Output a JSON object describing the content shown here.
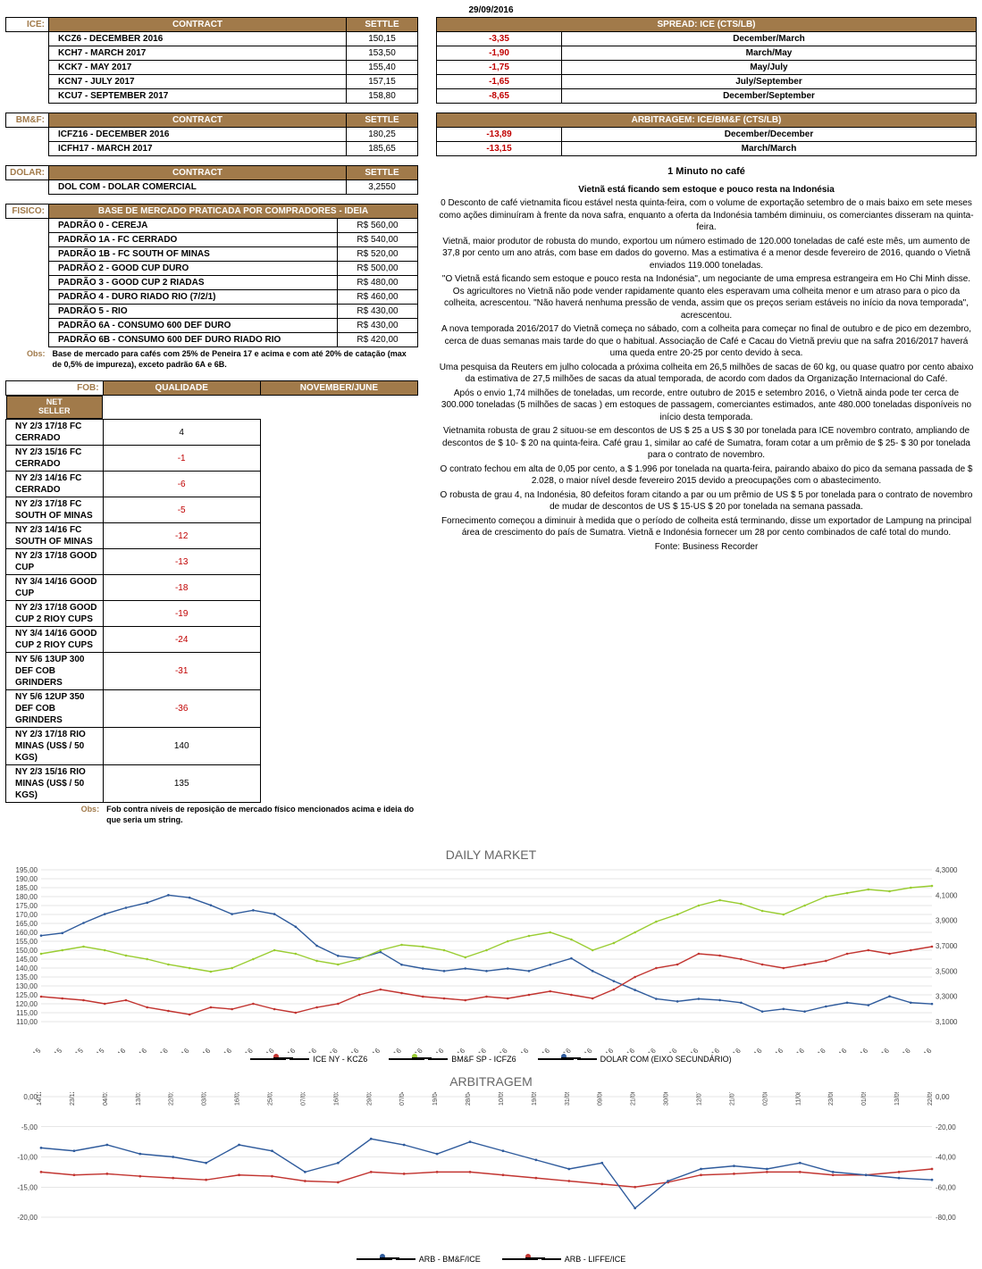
{
  "date": "29/09/2016",
  "ice": {
    "label": "ICE:",
    "col_contract": "CONTRACT",
    "col_settle": "SETTLE",
    "rows": [
      {
        "name": "KCZ6 - DECEMBER 2016",
        "settle": "150,15"
      },
      {
        "name": "KCH7 - MARCH 2017",
        "settle": "153,50"
      },
      {
        "name": "KCK7 - MAY 2017",
        "settle": "155,40"
      },
      {
        "name": "KCN7 - JULY 2017",
        "settle": "157,15"
      },
      {
        "name": "KCU7 - SEPTEMBER 2017",
        "settle": "158,80"
      }
    ]
  },
  "bmf": {
    "label": "BM&F:",
    "col_contract": "CONTRACT",
    "col_settle": "SETTLE",
    "rows": [
      {
        "name": "ICFZ16 - DECEMBER 2016",
        "settle": "180,25"
      },
      {
        "name": "ICFH17 - MARCH 2017",
        "settle": "185,65"
      }
    ]
  },
  "dolar": {
    "label": "DOLAR:",
    "col_contract": "CONTRACT",
    "col_settle": "SETTLE",
    "rows": [
      {
        "name": "DOL COM - DOLAR COMERCIAL",
        "settle": "3,2550"
      }
    ]
  },
  "fisico": {
    "label": "FISICO:",
    "header": "BASE DE MERCADO PRATICADA POR COMPRADORES - IDEIA",
    "rows": [
      {
        "name": "PADRÃO 0 - CEREJA",
        "val": "R$ 560,00"
      },
      {
        "name": "PADRÃO 1A - FC CERRADO",
        "val": "R$ 540,00"
      },
      {
        "name": "PADRÃO 1B - FC SOUTH OF MINAS",
        "val": "R$ 520,00"
      },
      {
        "name": "PADRÃO 2 - GOOD CUP DURO",
        "val": "R$ 500,00"
      },
      {
        "name": "PADRÃO 3 - GOOD CUP 2 RIADAS",
        "val": "R$ 480,00"
      },
      {
        "name": "PADRÃO 4 - DURO RIADO RIO (7/2/1)",
        "val": "R$ 460,00"
      },
      {
        "name": "PADRÃO 5 - RIO",
        "val": "R$ 430,00"
      },
      {
        "name": "PADRÃO 6A - CONSUMO 600 DEF DURO",
        "val": "R$ 430,00"
      },
      {
        "name": "PADRÃO 6B - CONSUMO 600 DEF DURO RIADO RIO",
        "val": "R$ 420,00"
      }
    ],
    "obs_label": "Obs:",
    "obs": "Base de mercado para cafés com 25% de Peneira 17 e acima e com até 20% de catação (max de 0,5% de impureza), exceto padrão 6A e 6B."
  },
  "fob": {
    "label": "FOB:",
    "stub1": "NET",
    "stub2": "SELLER",
    "col_q": "QUALIDADE",
    "col_v": "NOVEMBER/JUNE",
    "rows": [
      {
        "name": "NY 2/3 17/18 FC CERRADO",
        "val": "4",
        "neg": false
      },
      {
        "name": "NY 2/3 15/16 FC CERRADO",
        "val": "-1",
        "neg": true
      },
      {
        "name": "NY 2/3 14/16 FC CERRADO",
        "val": "-6",
        "neg": true
      },
      {
        "name": "NY 2/3 17/18 FC SOUTH OF MINAS",
        "val": "-5",
        "neg": true
      },
      {
        "name": "NY 2/3 14/16 FC SOUTH OF MINAS",
        "val": "-12",
        "neg": true
      },
      {
        "name": "NY 2/3 17/18 GOOD CUP",
        "val": "-13",
        "neg": true
      },
      {
        "name": "NY 3/4 14/16 GOOD CUP",
        "val": "-18",
        "neg": true
      },
      {
        "name": "NY 2/3 17/18 GOOD CUP 2 RIOY CUPS",
        "val": "-19",
        "neg": true
      },
      {
        "name": "NY 3/4 14/16 GOOD CUP 2 RIOY CUPS",
        "val": "-24",
        "neg": true
      },
      {
        "name": "NY 5/6 13UP 300 DEF COB GRINDERS",
        "val": "-31",
        "neg": true
      },
      {
        "name": "NY 5/6 12UP 350 DEF COB GRINDERS",
        "val": "-36",
        "neg": true
      },
      {
        "name": "NY 2/3 17/18 RIO MINAS (US$ / 50 KGS)",
        "val": "140",
        "neg": false
      },
      {
        "name": "NY 2/3 15/16 RIO MINAS (US$ / 50 KGS)",
        "val": "135",
        "neg": false
      }
    ],
    "obs_label": "Obs:",
    "obs": "Fob contra níveis de reposição de mercado físico mencionados acima e ideia do que seria um string."
  },
  "spread": {
    "header": "SPREAD: ICE (CTS/LB)",
    "rows": [
      {
        "val": "-3,35",
        "label": "December/March"
      },
      {
        "val": "-1,90",
        "label": "March/May"
      },
      {
        "val": "-1,75",
        "label": "May/July"
      },
      {
        "val": "-1,65",
        "label": "July/September"
      },
      {
        "val": "-8,65",
        "label": "December/September"
      }
    ]
  },
  "arb": {
    "header": "ARBITRAGEM: ICE/BM&F (CTS/LB)",
    "rows": [
      {
        "val": "-13,89",
        "label": "December/December"
      },
      {
        "val": "-13,15",
        "label": "March/March"
      }
    ]
  },
  "article": {
    "title": "1 Minuto no café",
    "subtitle": "Vietnã está ficando sem estoque e pouco resta na Indonésia",
    "p1": "0 Desconto de café vietnamita ficou estável nesta quinta-feira, com o volume de exportação setembro de o mais baixo em sete meses como ações diminuíram à frente da nova safra, enquanto a oferta da Indonésia também diminuiu, os comerciantes disseram na quinta-feira.",
    "p2": "Vietnã, maior produtor de robusta do mundo, exportou um número estimado de 120.000 toneladas de café este mês, um aumento de 37,8 por cento um ano atrás, com base em dados do governo. Mas a estimativa é a menor desde fevereiro de 2016, quando o Vietnã enviados 119.000 toneladas.",
    "p3": "\"O Vietnã está ficando sem estoque e pouco resta na Indonésia\", um negociante de uma empresa estrangeira em Ho Chi Minh disse. Os agricultores no Vietnã não pode vender rapidamente quanto eles esperavam uma colheita menor e um atraso para o pico da colheita, acrescentou. \"Não haverá nenhuma pressão de venda, assim que os preços seriam estáveis no início da nova temporada\", acrescentou.",
    "p4": "A nova temporada 2016/2017 do Vietnã começa no sábado, com a colheita para começar no final de outubro e de pico em dezembro, cerca de duas semanas mais tarde do que o habitual. Associação de Café e Cacau do Vietnã previu que na safra 2016/2017 haverá uma queda entre 20-25 por cento devido à seca.",
    "p5": "Uma pesquisa da Reuters em julho colocada a próxima colheita em 26,5 milhões de sacas de 60 kg, ou quase quatro por cento abaixo da estimativa de 27,5 milhões de sacas da atual temporada, de acordo com dados da Organização Internacional do Café.",
    "p6": "Após o envio 1,74 milhões de toneladas, um recorde, entre outubro de 2015 e setembro 2016, o Vietnã ainda pode ter cerca de 300.000 toneladas (5 milhões de sacas ) em estoques de passagem, comerciantes estimados, ante 480.000 toneladas disponíveis no início desta temporada.",
    "p7": "Vietnamita robusta de grau 2 situou-se em descontos de US $ 25 a US $ 30 por tonelada para ICE novembro contrato, ampliando de descontos de $ 10- $ 20 na quinta-feira. Café grau 1, similar ao café de Sumatra, foram cotar a um prêmio de $ 25- $ 30 por tonelada para o contrato de novembro.",
    "p8": "O contrato fechou em alta de 0,05 por cento, a $ 1.996 por tonelada na quarta-feira, pairando abaixo do pico da semana passada de $ 2.028, o maior nível desde fevereiro 2015 devido a preocupações com o abastecimento.",
    "p9": "O robusta de grau 4, na Indonésia, 80 defeitos foram citando a par ou um prêmio de US $ 5 por tonelada para o contrato de novembro de mudar de descontos de US $ 15-US $ 20 por tonelada na semana passada.",
    "p10": "Fornecimento começou a diminuir à medida que o período de colheita está terminando, disse um exportador de Lampung na principal área de crescimento do país de Sumatra. Vietnã e Indonésia fornecer um 28 por cento combinados de café total do mundo.",
    "source": "Fonte: Business Recorder"
  },
  "chart1": {
    "title": "DAILY MARKET",
    "left_axis": {
      "min": 110,
      "max": 195,
      "step": 5,
      "labels": [
        "195,00",
        "190,00",
        "185,00",
        "180,00",
        "175,00",
        "170,00",
        "165,00",
        "160,00",
        "155,00",
        "150,00",
        "145,00",
        "140,00",
        "135,00",
        "130,00",
        "125,00",
        "120,00",
        "115,00",
        "110,00"
      ]
    },
    "right_axis": {
      "min": 3.1,
      "max": 4.3,
      "step": 0.2,
      "labels": [
        "4,3000",
        "4,1000",
        "3,9000",
        "3,7000",
        "3,5000",
        "3,3000",
        "3,1000"
      ]
    },
    "x_labels": [
      "4/12/15",
      "11/12/15",
      "18/12/15",
      "25/12/15",
      "1/1/16",
      "8/1/16",
      "15/1/16",
      "22/1/16",
      "29/1/16",
      "5/2/16",
      "12/2/16",
      "19/2/16",
      "26/2/16",
      "4/3/16",
      "11/3/16",
      "18/3/16",
      "25/3/16",
      "1/4/16",
      "8/4/16",
      "15/4/16",
      "22/4/16",
      "29/4/16",
      "6/5/16",
      "13/5/16",
      "20/5/16",
      "27/5/16",
      "3/6/16",
      "10/6/16",
      "17/6/16",
      "24/6/16",
      "1/7/16",
      "8/7/16",
      "15/7/16",
      "22/7/16",
      "29/7/16",
      "5/8/16",
      "12/8/16",
      "19/8/16",
      "26/8/16",
      "2/9/16",
      "9/9/16",
      "16/9/16",
      "23/9/16"
    ],
    "colors": {
      "ice": "#c23531",
      "bmf": "#9acd32",
      "dolar": "#2f5b9c",
      "grid": "#cccccc",
      "bg": "#ffffff"
    },
    "legend": {
      "ice": "ICE NY - KCZ6",
      "bmf": "BM&F SP - ICFZ6",
      "dolar": "DOLAR COM (EIXO SECUNDÁRIO)"
    },
    "series_ice": [
      124,
      123,
      122,
      120,
      122,
      118,
      116,
      114,
      118,
      117,
      120,
      117,
      115,
      118,
      120,
      125,
      128,
      126,
      124,
      123,
      122,
      124,
      123,
      125,
      127,
      125,
      123,
      128,
      135,
      140,
      142,
      148,
      147,
      145,
      142,
      140,
      142,
      144,
      148,
      150,
      148,
      150,
      152
    ],
    "series_bmf": [
      148,
      150,
      152,
      150,
      147,
      145,
      142,
      140,
      138,
      140,
      145,
      150,
      148,
      144,
      142,
      145,
      150,
      153,
      152,
      150,
      146,
      150,
      155,
      158,
      160,
      156,
      150,
      154,
      160,
      166,
      170,
      175,
      178,
      176,
      172,
      170,
      175,
      180,
      182,
      184,
      183,
      185,
      186
    ],
    "series_dolar": [
      3.78,
      3.8,
      3.88,
      3.95,
      4.0,
      4.04,
      4.1,
      4.08,
      4.02,
      3.95,
      3.98,
      3.95,
      3.85,
      3.7,
      3.62,
      3.6,
      3.65,
      3.55,
      3.52,
      3.5,
      3.52,
      3.5,
      3.52,
      3.5,
      3.55,
      3.6,
      3.5,
      3.42,
      3.35,
      3.28,
      3.26,
      3.28,
      3.27,
      3.25,
      3.18,
      3.2,
      3.18,
      3.22,
      3.25,
      3.23,
      3.3,
      3.25,
      3.24
    ]
  },
  "chart2": {
    "title": "ARBITRAGEM",
    "left_axis": {
      "min": -20,
      "max": 0,
      "step": 5,
      "labels": [
        "0,00",
        "-5,00",
        "-10,00",
        "-15,00",
        "-20,00"
      ]
    },
    "right_axis": {
      "min": -80,
      "max": 0,
      "step": 20,
      "labels": [
        "0,00",
        "-20,00",
        "-40,00",
        "-60,00",
        "-80,00"
      ]
    },
    "x_labels": [
      "14/12/15",
      "23/12/15",
      "04/01/16",
      "13/01/16",
      "22/01/16",
      "03/02/16",
      "16/02/16",
      "25/02/16",
      "07/03/16",
      "16/03/16",
      "29/03/16",
      "07/04/16",
      "19/04/16",
      "28/04/16",
      "10/05/16",
      "19/05/16",
      "31/05/16",
      "09/06/16",
      "21/06/16",
      "30/06/16",
      "12/07/16",
      "21/07/16",
      "02/08/16",
      "11/08/16",
      "23/08/16",
      "01/09/16",
      "13/09/16",
      "22/09/16"
    ],
    "colors": {
      "arb_bmf": "#2f5b9c",
      "arb_liffe": "#c23531",
      "grid": "#cccccc"
    },
    "legend": {
      "bmf": "ARB - BM&F/ICE",
      "liffe": "ARB - LIFFE/ICE"
    },
    "series_bmf": [
      -8.5,
      -9.0,
      -8.0,
      -9.5,
      -10.0,
      -11.0,
      -8.0,
      -9.0,
      -12.5,
      -11.0,
      -7.0,
      -8.0,
      -9.5,
      -7.5,
      -9.0,
      -10.5,
      -12.0,
      -11.0,
      -18.5,
      -14.0,
      -12.0,
      -11.5,
      -12.0,
      -11.0,
      -12.5,
      -13.0,
      -13.5,
      -13.8
    ],
    "series_liffe": [
      -12.5,
      -13.0,
      -12.8,
      -13.2,
      -13.5,
      -13.8,
      -13.0,
      -13.2,
      -14.0,
      -14.2,
      -12.5,
      -12.8,
      -12.5,
      -12.5,
      -13.0,
      -13.5,
      -14.0,
      -14.5,
      -15.0,
      -14.2,
      -13.0,
      -12.8,
      -12.5,
      -12.5,
      -13.0,
      -13.0,
      -12.5,
      -12.0
    ]
  }
}
